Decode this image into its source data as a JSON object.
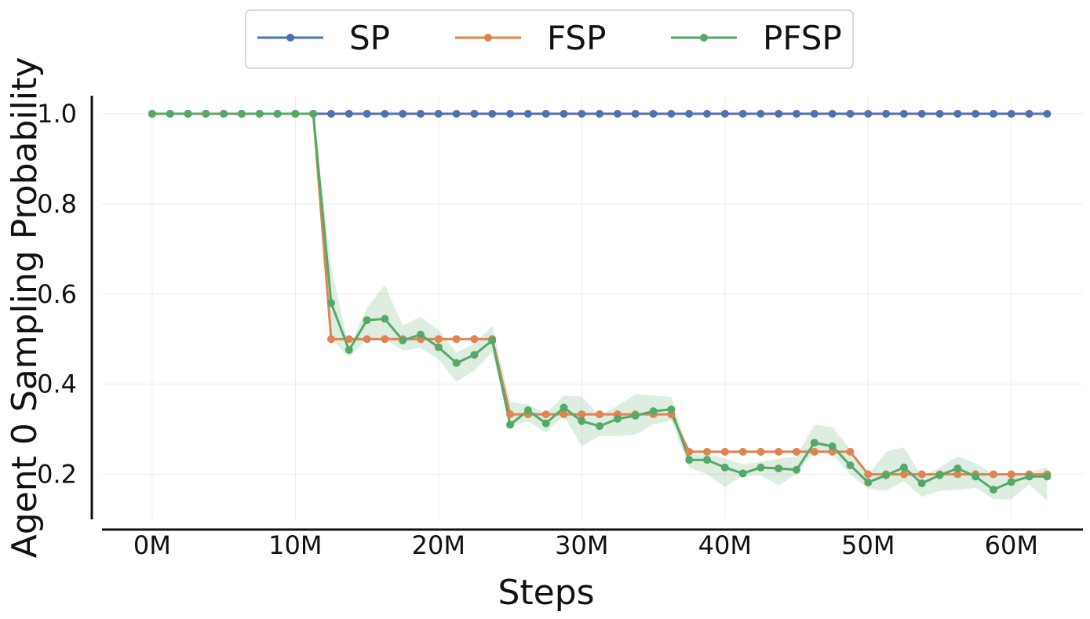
{
  "chart_data": {
    "type": "line",
    "xlabel": "Steps",
    "ylabel": "Agent 0 Sampling Probability",
    "xlim": [
      -3500000,
      65000000
    ],
    "ylim": [
      0.1,
      1.04
    ],
    "x_ticks": [
      {
        "value": 0,
        "label": "0M"
      },
      {
        "value": 10000000,
        "label": "10M"
      },
      {
        "value": 20000000,
        "label": "20M"
      },
      {
        "value": 30000000,
        "label": "30M"
      },
      {
        "value": 40000000,
        "label": "40M"
      },
      {
        "value": 50000000,
        "label": "50M"
      },
      {
        "value": 60000000,
        "label": "60M"
      }
    ],
    "y_ticks": [
      {
        "value": 0.2,
        "label": "0.2"
      },
      {
        "value": 0.4,
        "label": "0.4"
      },
      {
        "value": 0.6,
        "label": "0.6"
      },
      {
        "value": 0.8,
        "label": "0.8"
      },
      {
        "value": 1.0,
        "label": "1.0"
      }
    ],
    "grid": true,
    "legend_position": "top-center",
    "x": [
      0,
      1250000,
      2500000,
      3750000,
      5000000,
      6250000,
      7500000,
      8750000,
      10000000,
      11250000,
      12500000,
      13750000,
      15000000,
      16250000,
      17500000,
      18750000,
      20000000,
      21250000,
      22500000,
      23750000,
      25000000,
      26250000,
      27500000,
      28750000,
      30000000,
      31250000,
      32500000,
      33750000,
      35000000,
      36250000,
      37500000,
      38750000,
      40000000,
      41250000,
      42500000,
      43750000,
      45000000,
      46250000,
      47500000,
      48750000,
      50000000,
      51250000,
      52500000,
      53750000,
      55000000,
      56250000,
      57500000,
      58750000,
      60000000,
      61250000,
      62500000
    ],
    "series": [
      {
        "name": "SP",
        "color": "#4c72b0",
        "values": [
          1,
          1,
          1,
          1,
          1,
          1,
          1,
          1,
          1,
          1,
          1,
          1,
          1,
          1,
          1,
          1,
          1,
          1,
          1,
          1,
          1,
          1,
          1,
          1,
          1,
          1,
          1,
          1,
          1,
          1,
          1,
          1,
          1,
          1,
          1,
          1,
          1,
          1,
          1,
          1,
          1,
          1,
          1,
          1,
          1,
          1,
          1,
          1,
          1,
          1,
          1
        ]
      },
      {
        "name": "FSP",
        "color": "#dd8452",
        "values": [
          1,
          1,
          1,
          1,
          1,
          1,
          1,
          1,
          1,
          1,
          0.5,
          0.5,
          0.5,
          0.5,
          0.5,
          0.5,
          0.5,
          0.5,
          0.5,
          0.5,
          0.333,
          0.333,
          0.333,
          0.333,
          0.333,
          0.333,
          0.333,
          0.333,
          0.333,
          0.333,
          0.25,
          0.25,
          0.25,
          0.25,
          0.25,
          0.25,
          0.25,
          0.25,
          0.25,
          0.25,
          0.2,
          0.2,
          0.2,
          0.2,
          0.2,
          0.2,
          0.2,
          0.2,
          0.2,
          0.2,
          0.2
        ]
      },
      {
        "name": "PFSP",
        "color": "#55a868",
        "values": [
          1,
          1,
          1,
          1,
          1,
          1,
          1,
          1,
          1,
          1,
          0.58,
          0.476,
          0.542,
          0.545,
          0.497,
          0.51,
          0.482,
          0.447,
          0.465,
          0.497,
          0.31,
          0.342,
          0.313,
          0.348,
          0.318,
          0.307,
          0.323,
          0.33,
          0.34,
          0.344,
          0.232,
          0.232,
          0.215,
          0.202,
          0.215,
          0.213,
          0.21,
          0.27,
          0.262,
          0.22,
          0.182,
          0.198,
          0.215,
          0.18,
          0.198,
          0.213,
          0.195,
          0.166,
          0.183,
          0.195,
          0.195
        ],
        "band_upper": [
          1,
          1,
          1,
          1,
          1,
          1,
          1,
          1,
          1,
          1,
          0.66,
          0.48,
          0.57,
          0.62,
          0.53,
          0.55,
          0.52,
          0.47,
          0.49,
          0.53,
          0.36,
          0.355,
          0.335,
          0.375,
          0.372,
          0.33,
          0.352,
          0.378,
          0.375,
          0.372,
          0.245,
          0.245,
          0.235,
          0.222,
          0.228,
          0.235,
          0.24,
          0.31,
          0.305,
          0.255,
          0.197,
          0.25,
          0.26,
          0.195,
          0.215,
          0.24,
          0.225,
          0.2,
          0.2,
          0.205,
          0.215
        ],
        "band_lower": [
          1,
          1,
          1,
          1,
          1,
          1,
          1,
          1,
          1,
          1,
          0.5,
          0.46,
          0.5,
          0.5,
          0.475,
          0.48,
          0.455,
          0.405,
          0.43,
          0.47,
          0.305,
          0.318,
          0.292,
          0.33,
          0.262,
          0.285,
          0.285,
          0.288,
          0.31,
          0.32,
          0.215,
          0.2,
          0.172,
          0.195,
          0.198,
          0.175,
          0.2,
          0.25,
          0.245,
          0.2,
          0.168,
          0.163,
          0.185,
          0.15,
          0.163,
          0.165,
          0.17,
          0.145,
          0.145,
          0.178,
          0.14
        ]
      }
    ]
  }
}
